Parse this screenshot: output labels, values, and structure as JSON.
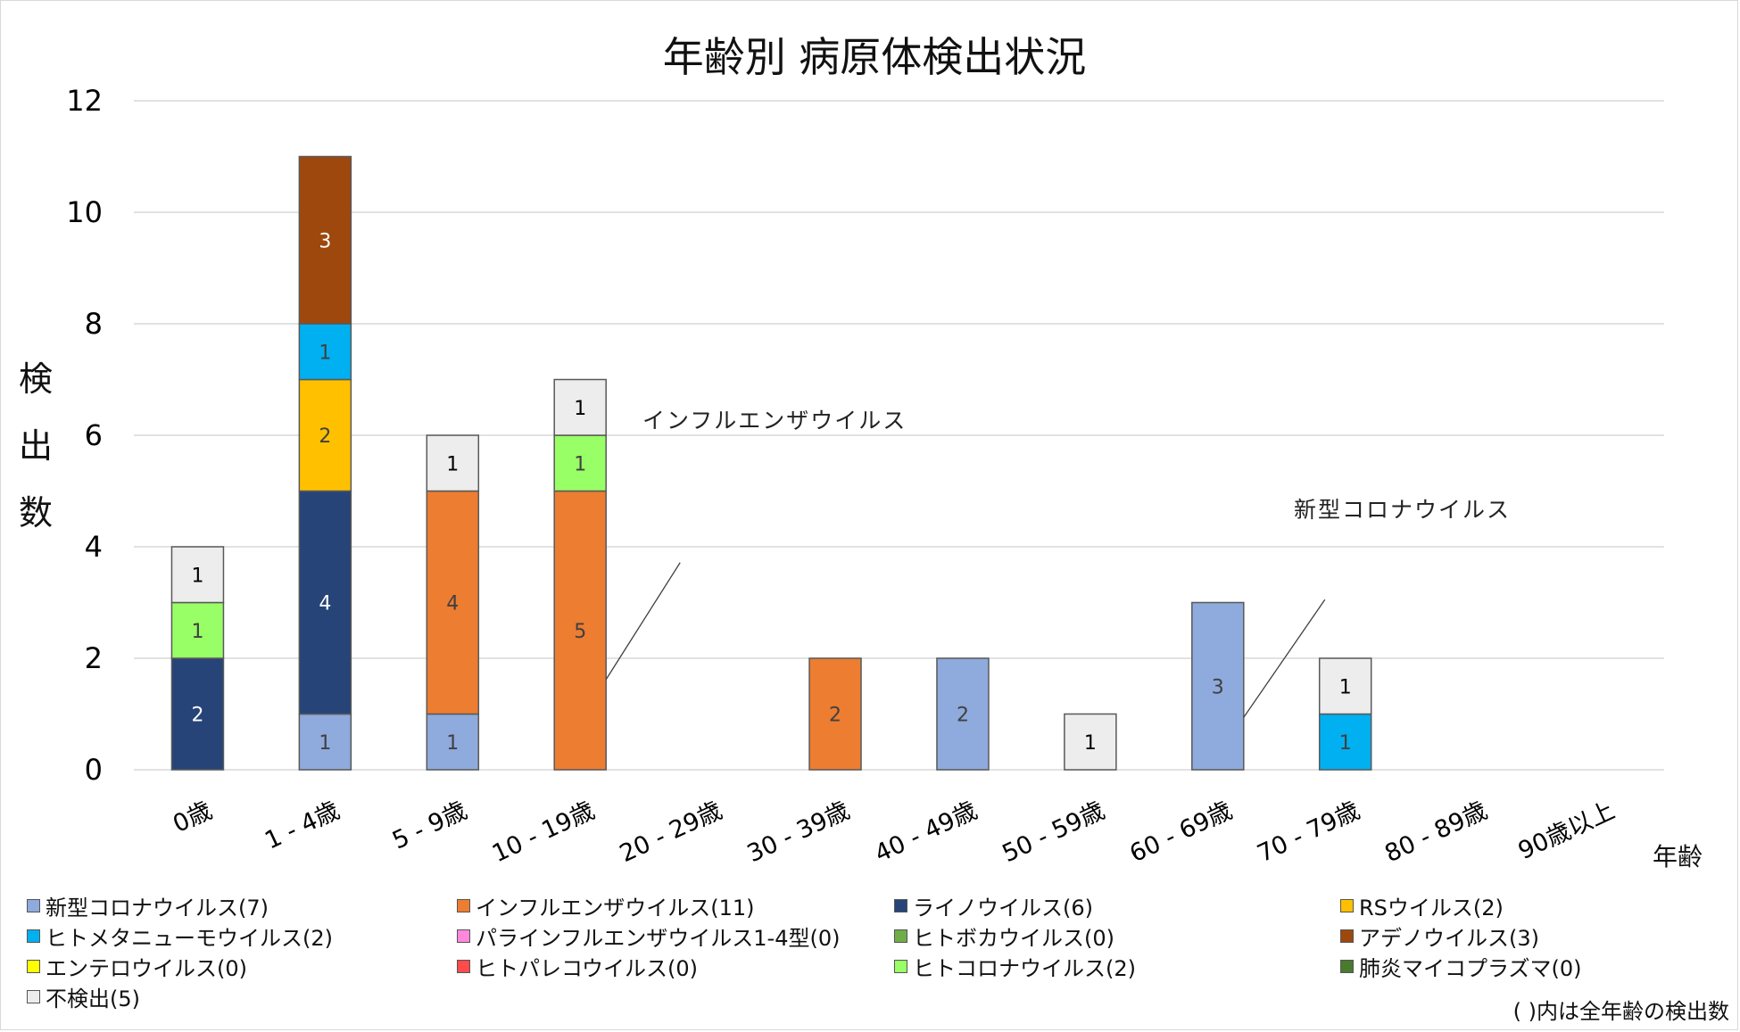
{
  "chart_data": {
    "type": "bar",
    "stacked": true,
    "title": "年齢別 病原体検出状況",
    "xlabel": "年齢",
    "ylabel": "検出数",
    "ylim": [
      0,
      12
    ],
    "yticks": [
      0,
      2,
      4,
      6,
      8,
      10,
      12
    ],
    "grid": true,
    "legend_position": "bottom",
    "categories": [
      "0歳",
      "1 - 4歳",
      "5 - 9歳",
      "10 - 19歳",
      "20 - 29歳",
      "30 - 39歳",
      "40 - 49歳",
      "50 - 59歳",
      "60 - 69歳",
      "70 - 79歳",
      "80 - 89歳",
      "90歳以上"
    ],
    "series": [
      {
        "name": "新型コロナウイルス",
        "legend": "新型コロナウイルス(7)",
        "color": "#8FAADC",
        "label_color": "#404040",
        "values": [
          0,
          1,
          1,
          0,
          0,
          0,
          2,
          0,
          3,
          0,
          0,
          0
        ]
      },
      {
        "name": "インフルエンザウイルス",
        "legend": "インフルエンザウイルス(11)",
        "color": "#ED7D31",
        "label_color": "#404040",
        "values": [
          0,
          0,
          4,
          5,
          0,
          2,
          0,
          0,
          0,
          0,
          0,
          0
        ]
      },
      {
        "name": "ライノウイルス",
        "legend": "ライノウイルス(6)",
        "color": "#264478",
        "label_color": "#FFFFFF",
        "values": [
          2,
          4,
          0,
          0,
          0,
          0,
          0,
          0,
          0,
          0,
          0,
          0
        ]
      },
      {
        "name": "RSウイルス",
        "legend": "RSウイルス(2)",
        "color": "#FFC000",
        "label_color": "#404040",
        "values": [
          0,
          2,
          0,
          0,
          0,
          0,
          0,
          0,
          0,
          0,
          0,
          0
        ]
      },
      {
        "name": "ヒトメタニューモウイルス",
        "legend": "ヒトメタニューモウイルス(2)",
        "color": "#00B0F0",
        "label_color": "#404040",
        "values": [
          0,
          1,
          0,
          0,
          0,
          0,
          0,
          0,
          0,
          1,
          0,
          0
        ]
      },
      {
        "name": "パラインフルエンザウイルス1-4型",
        "legend": "パラインフルエンザウイルス1-4型(0)",
        "color": "#FF88DD",
        "label_color": "#404040",
        "values": [
          0,
          0,
          0,
          0,
          0,
          0,
          0,
          0,
          0,
          0,
          0,
          0
        ]
      },
      {
        "name": "ヒトボカウイルス",
        "legend": "ヒトボカウイルス(0)",
        "color": "#70AD47",
        "label_color": "#404040",
        "values": [
          0,
          0,
          0,
          0,
          0,
          0,
          0,
          0,
          0,
          0,
          0,
          0
        ]
      },
      {
        "name": "アデノウイルス",
        "legend": "アデノウイルス(3)",
        "color": "#9E480E",
        "label_color": "#FFFFFF",
        "values": [
          0,
          3,
          0,
          0,
          0,
          0,
          0,
          0,
          0,
          0,
          0,
          0
        ]
      },
      {
        "name": "エンテロウイルス",
        "legend": "エンテロウイルス(0)",
        "color": "#FFFF00",
        "label_color": "#404040",
        "values": [
          0,
          0,
          0,
          0,
          0,
          0,
          0,
          0,
          0,
          0,
          0,
          0
        ]
      },
      {
        "name": "ヒトパレコウイルス",
        "legend": "ヒトパレコウイルス(0)",
        "color": "#FF4B4B",
        "label_color": "#404040",
        "values": [
          0,
          0,
          0,
          0,
          0,
          0,
          0,
          0,
          0,
          0,
          0,
          0
        ]
      },
      {
        "name": "ヒトコロナウイルス",
        "legend": "ヒトコロナウイルス(2)",
        "color": "#99FF66",
        "label_color": "#404040",
        "values": [
          1,
          0,
          0,
          1,
          0,
          0,
          0,
          0,
          0,
          0,
          0,
          0
        ]
      },
      {
        "name": "肺炎マイコプラズマ",
        "legend": "肺炎マイコプラズマ(0)",
        "color": "#4A7A2E",
        "label_color": "#404040",
        "values": [
          0,
          0,
          0,
          0,
          0,
          0,
          0,
          0,
          0,
          0,
          0,
          0
        ]
      },
      {
        "name": "不検出",
        "legend": "不検出(5)",
        "color": "#EDEDED",
        "label_color": "#000000",
        "values": [
          1,
          0,
          1,
          1,
          0,
          0,
          0,
          1,
          0,
          1,
          0,
          0
        ]
      }
    ],
    "annotations": [
      {
        "text": "インフルエンザウイルス",
        "category": "10 - 19歳",
        "series": "インフルエンザウイルス"
      },
      {
        "text": "新型コロナウイルス",
        "category": "60 - 69歳",
        "series": "新型コロナウイルス"
      }
    ],
    "footnote": "( )内は全年齢の検出数"
  }
}
